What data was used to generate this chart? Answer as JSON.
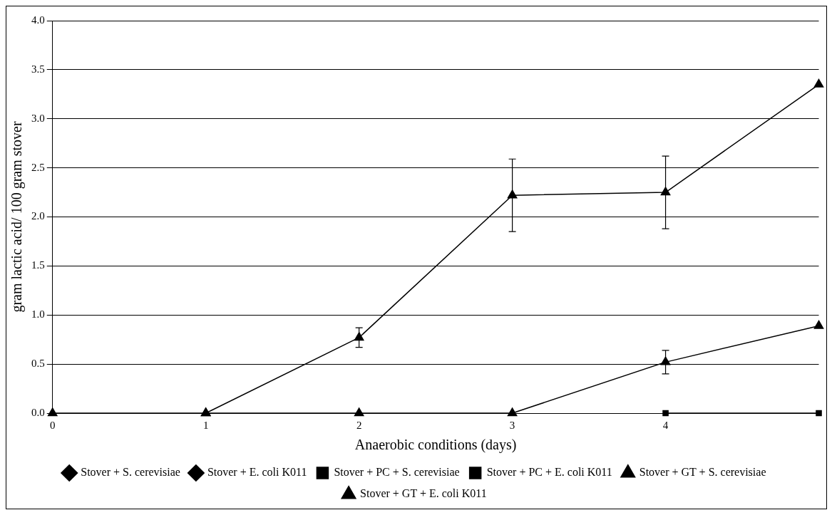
{
  "chart_data": {
    "type": "line",
    "xlabel": "Anaerobic conditions (days)",
    "ylabel": "gram lactic acid/ 100 gram stover",
    "x": [
      0,
      1,
      2,
      3,
      4,
      5
    ],
    "xlim": [
      0,
      5
    ],
    "xticks": [
      0,
      1,
      2,
      3,
      4
    ],
    "ylim": [
      0,
      4
    ],
    "yticks": [
      {
        "value": 0,
        "label": "0.0"
      },
      {
        "value": 0.5,
        "label": "0.5"
      },
      {
        "value": 1,
        "label": "1.0"
      },
      {
        "value": 1.5,
        "label": "1.5"
      },
      {
        "value": 2,
        "label": "2.0"
      },
      {
        "value": 2.5,
        "label": "2.5"
      },
      {
        "value": 3,
        "label": "3.0"
      },
      {
        "value": 3.5,
        "label": "3.5"
      },
      {
        "value": 4,
        "label": "4.0"
      }
    ],
    "grid": "y",
    "legend": "bottom",
    "line_style": "solid",
    "series": [
      {
        "name": "Stover + S. cerevisiae",
        "color": "#000000",
        "marker": "diamond",
        "values": [
          null,
          null,
          null,
          null,
          null,
          null
        ]
      },
      {
        "name": "Stover + E. coli K011",
        "color": "#000000",
        "marker": "diamond",
        "values": [
          null,
          null,
          null,
          null,
          null,
          null
        ]
      },
      {
        "name": "Stover + PC + S. cerevisiae",
        "color": "#000000",
        "marker": "square",
        "values": [
          null,
          null,
          null,
          null,
          null,
          null
        ]
      },
      {
        "name": "Stover + PC + E. coli K011",
        "color": "#000000",
        "marker": "square",
        "values": [
          null,
          null,
          null,
          null,
          0,
          0
        ]
      },
      {
        "name": "Stover + GT + S. cerevisiae",
        "color": "#000000",
        "marker": "triangle",
        "values": [
          null,
          0,
          0.77,
          2.22,
          2.25,
          3.35
        ],
        "errors": [
          null,
          null,
          0.1,
          0.37,
          0.37,
          null
        ]
      },
      {
        "name": "Stover + GT + E. coli K011",
        "color": "#000000",
        "marker": "triangle",
        "values": [
          0,
          0,
          0,
          0,
          0.52,
          0.89
        ],
        "errors": [
          null,
          null,
          null,
          null,
          0.12,
          null
        ]
      }
    ]
  }
}
